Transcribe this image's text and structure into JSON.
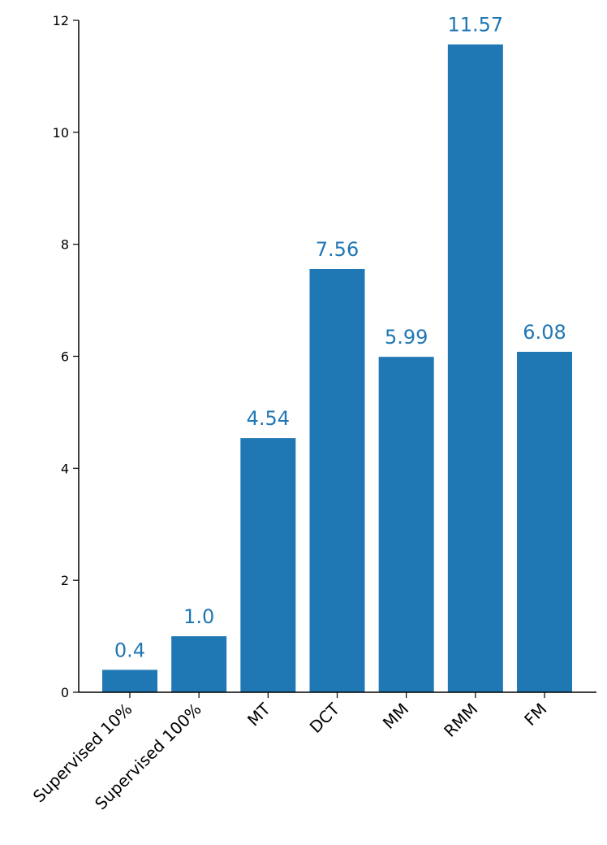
{
  "chart_data": {
    "type": "bar",
    "title": "",
    "xlabel": "",
    "ylabel": "",
    "categories": [
      "Supervised 10%",
      "Supervised 100%",
      "MT",
      "DCT",
      "MM",
      "RMM",
      "FM"
    ],
    "values": [
      0.4,
      1.0,
      4.54,
      7.56,
      5.99,
      11.57,
      6.08
    ],
    "data_labels": [
      "0.4",
      "1.0",
      "4.54",
      "7.56",
      "5.99",
      "11.57",
      "6.08"
    ],
    "ylim": [
      0,
      12
    ],
    "yticks": [
      0,
      2,
      4,
      6,
      8,
      10,
      12
    ],
    "ytick_labels": [
      "0",
      "2",
      "4",
      "6",
      "8",
      "10",
      "12"
    ],
    "grid": false,
    "legend": "none",
    "bar_color": "#1f77b4",
    "label_color": "#1f77b4",
    "axis_color": "#000000"
  }
}
